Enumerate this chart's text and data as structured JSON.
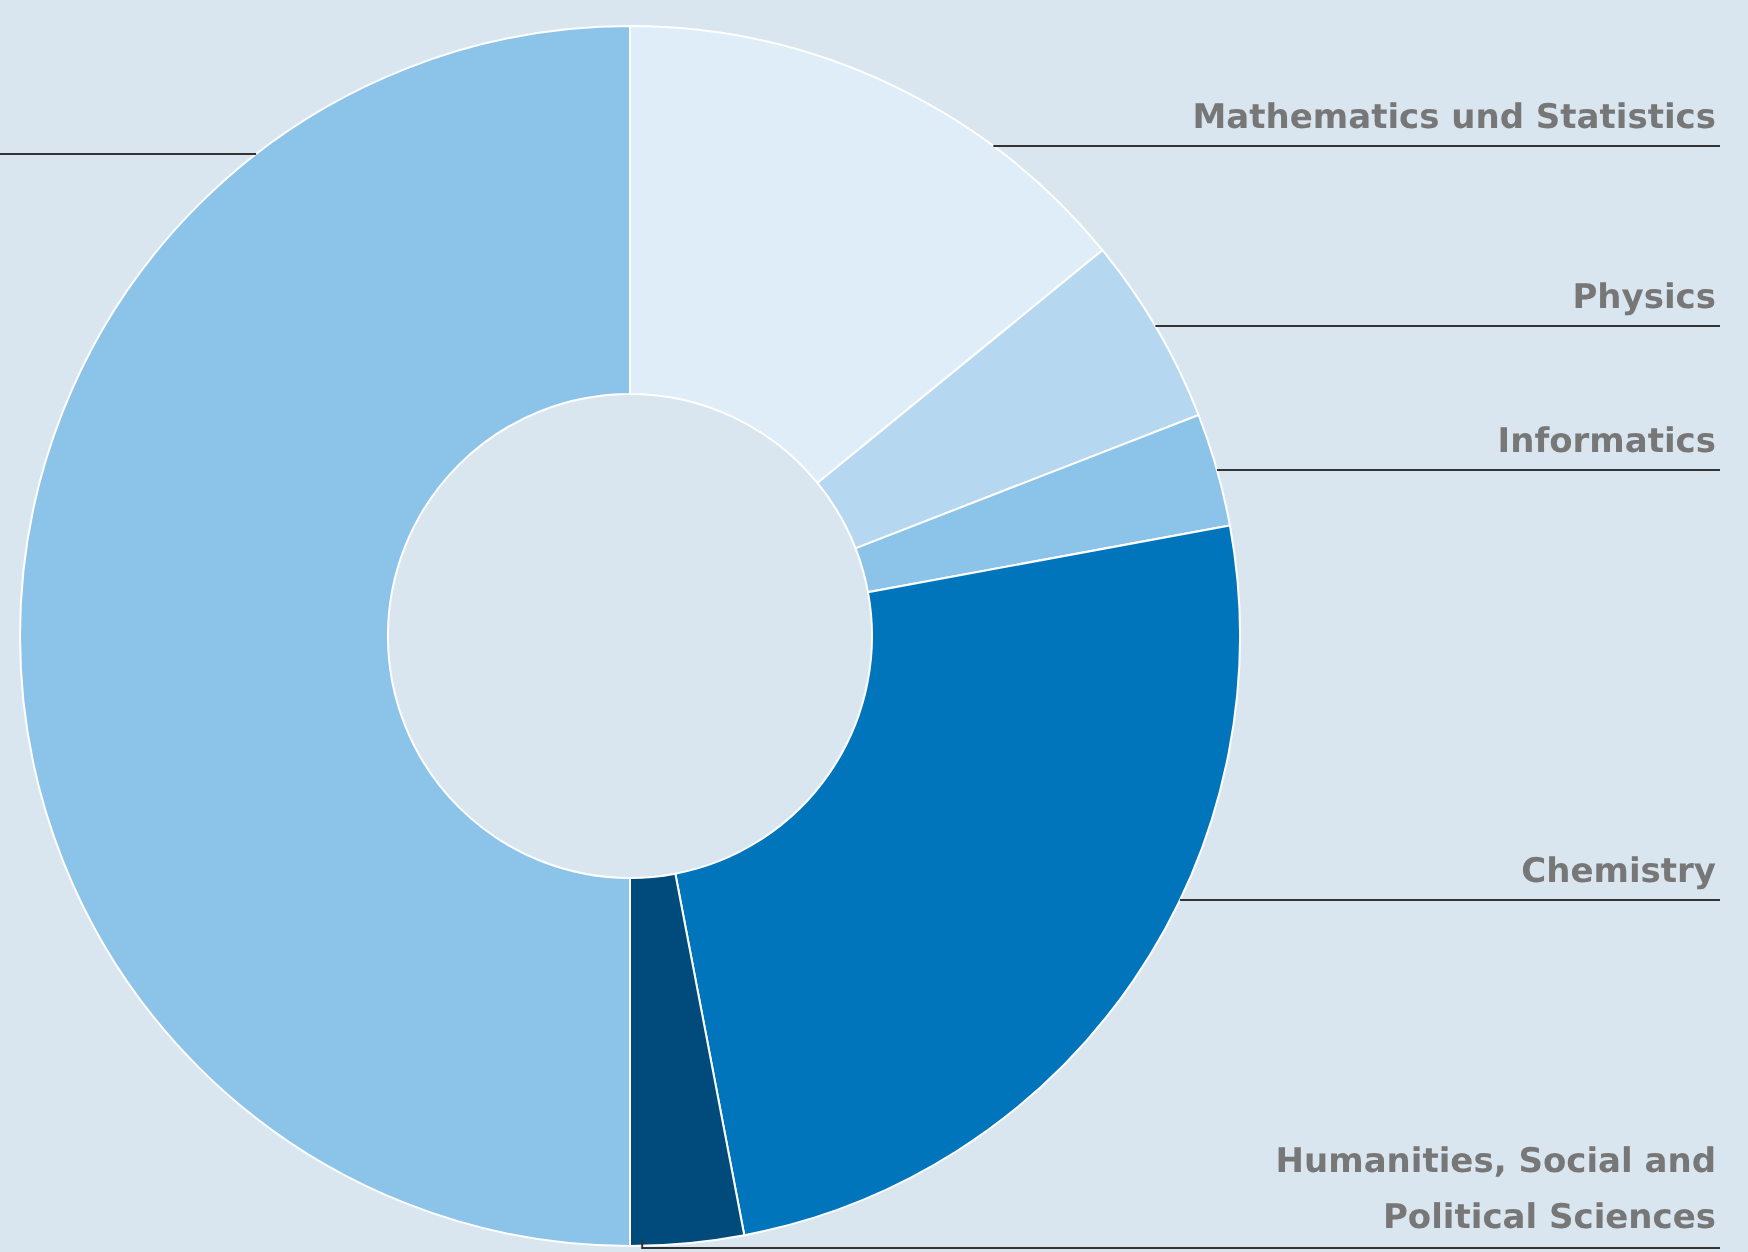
{
  "chart_data": {
    "type": "donut",
    "categories": [
      "Mathematics und Statistics",
      "Physics",
      "Informatics",
      "Chemistry",
      "Humanities, Social and Political Sciences",
      null
    ],
    "values": [
      14.1,
      5.0,
      3.0,
      24.9,
      3.0,
      50.0
    ],
    "colors": [
      "#deedf8",
      "#b5d7f0",
      "#8cc3e9",
      "#0075bc",
      "#004a7c",
      "#8cc3e9"
    ]
  }
}
